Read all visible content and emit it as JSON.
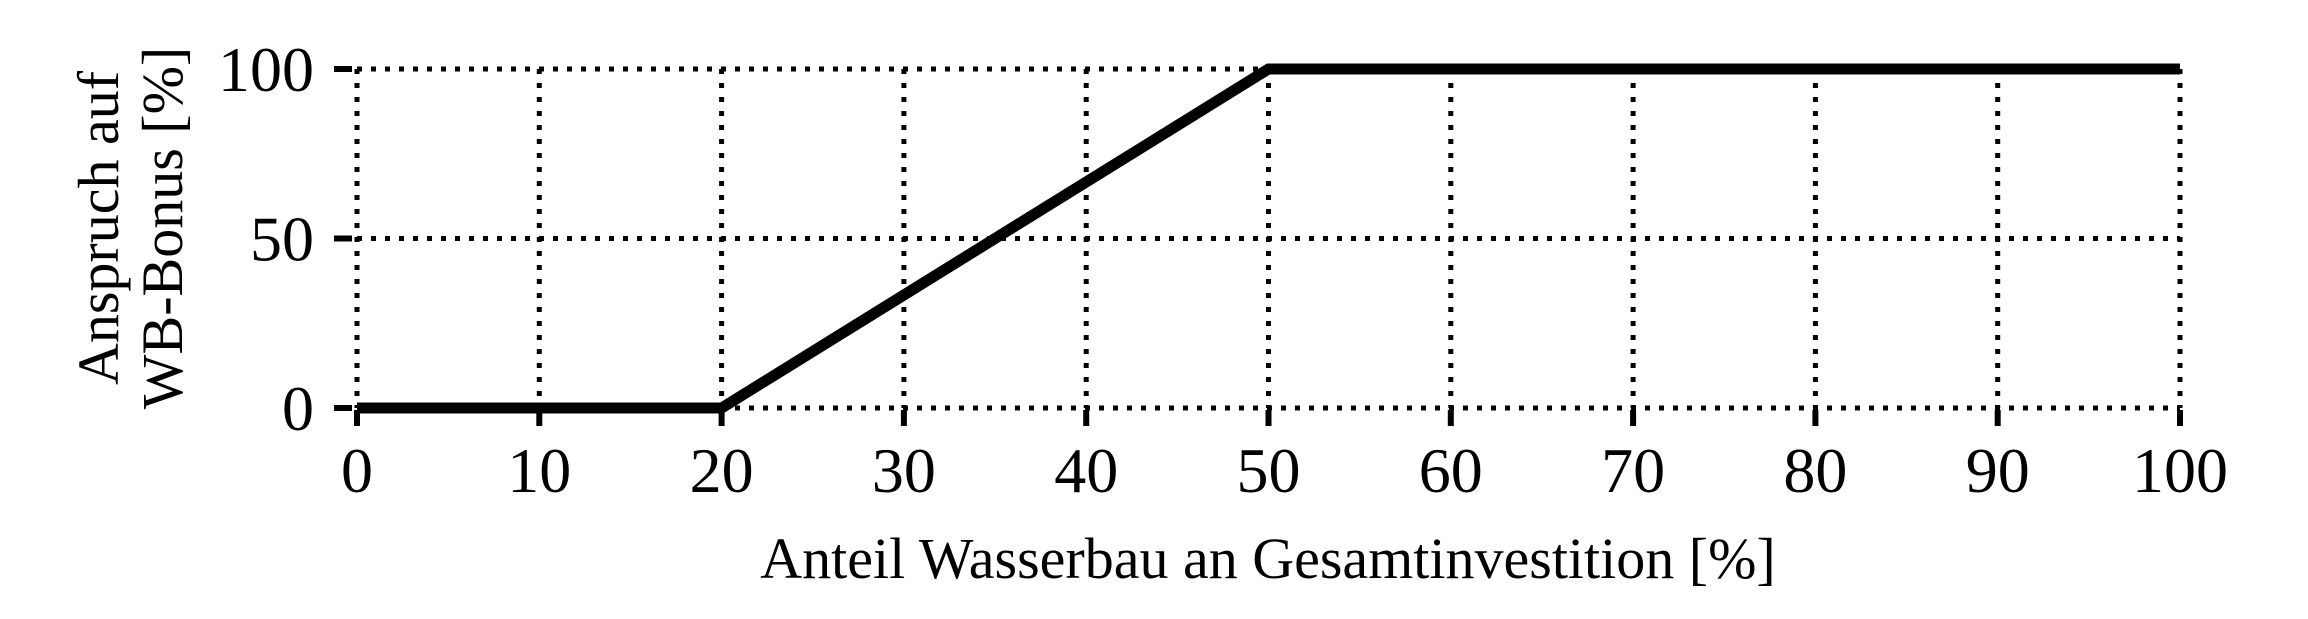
{
  "figure": {
    "background": "#ffffff",
    "text_color": "#000000"
  },
  "chart_data": {
    "type": "line",
    "title": "",
    "xlabel": "Anteil Wasserbau an Gesamtinvestition [%]",
    "ylabel_lines": [
      "Anspruch auf",
      "WB-Bonus [%]"
    ],
    "xlim": [
      0,
      100
    ],
    "ylim": [
      0,
      100
    ],
    "xticks": [
      0,
      10,
      20,
      30,
      40,
      50,
      60,
      70,
      80,
      90,
      100
    ],
    "yticks": [
      0,
      50,
      100
    ],
    "grid": "dotted",
    "grid_color": "#000000",
    "legend_position": "none",
    "series": [
      {
        "name": "Anspruch auf WB-Bonus",
        "points": [
          [
            0,
            0
          ],
          [
            20,
            0
          ],
          [
            50,
            100
          ],
          [
            100,
            100
          ]
        ],
        "color": "#000000",
        "line_width": 11
      }
    ]
  }
}
